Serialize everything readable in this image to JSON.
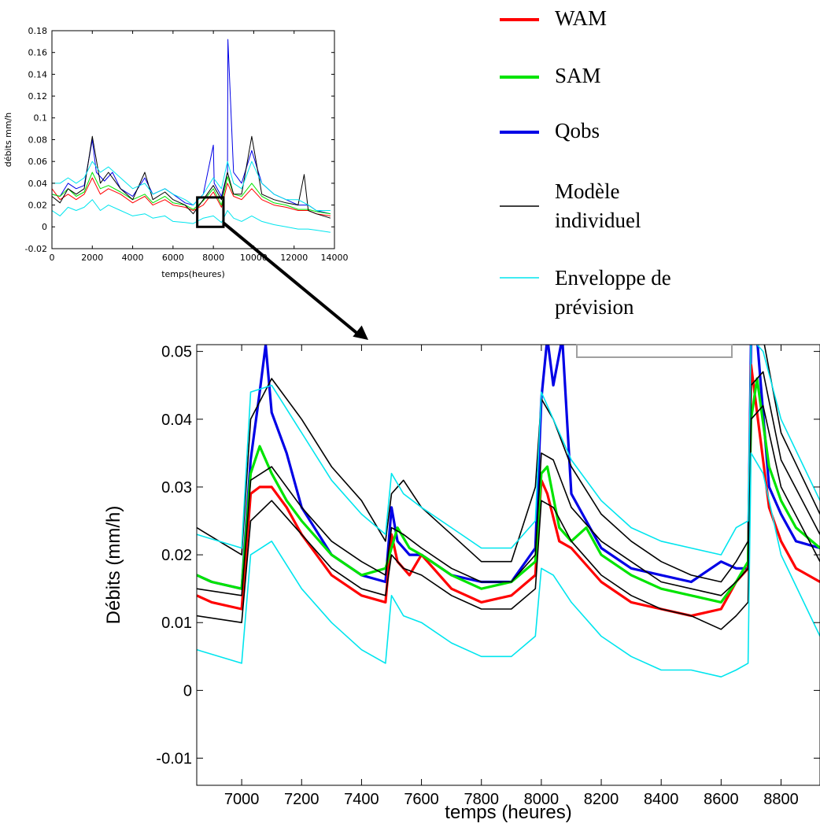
{
  "legend": [
    {
      "label": "WAM",
      "color": "#ff0000"
    },
    {
      "label": "SAM",
      "color": "#00e400"
    },
    {
      "label": "Qobs",
      "color": "#0000e6"
    },
    {
      "label": "Modèle\nindividuel",
      "color": "#000000"
    },
    {
      "label": "Enveloppe de\nprévision",
      "color": "#00e5ee"
    }
  ],
  "chart_data": [
    {
      "type": "line",
      "xlabel": "temps(heures)",
      "ylabel": "débits mm/h",
      "xlim": [
        0,
        14000
      ],
      "ylim": [
        -0.02,
        0.18
      ],
      "xticks": [
        "0",
        "2000",
        "4000",
        "6000",
        "8000",
        "10000",
        "12000",
        "14000"
      ],
      "yticks": [
        "-0.02",
        "0",
        "0.02",
        "0.04",
        "0.06",
        "0.08",
        "0.1",
        "0.12",
        "0.14",
        "0.16",
        "0.18"
      ],
      "zoom_box": {
        "x": [
          7200,
          8500
        ],
        "y": [
          0.0,
          0.027
        ]
      },
      "series": [
        {
          "color": "#0000e6",
          "x": [
            0,
            400,
            800,
            1200,
            1600,
            2000,
            2200,
            2600,
            3000,
            3400,
            4000,
            4600,
            5000,
            5600,
            6000,
            6600,
            7000,
            7500,
            8000,
            8040,
            8400,
            8700,
            8720,
            9000,
            9400,
            9900,
            10400,
            11000,
            11600,
            12200,
            12700,
            13100,
            13800
          ],
          "y": [
            0.03,
            0.028,
            0.04,
            0.035,
            0.038,
            0.08,
            0.05,
            0.042,
            0.05,
            0.035,
            0.028,
            0.045,
            0.03,
            0.035,
            0.03,
            0.022,
            0.02,
            0.03,
            0.075,
            0.04,
            0.028,
            0.05,
            0.172,
            0.05,
            0.04,
            0.07,
            0.04,
            0.03,
            0.025,
            0.02,
            0.02,
            0.015,
            0.012
          ]
        },
        {
          "color": "#ff0000",
          "x": [
            0,
            400,
            800,
            1200,
            1600,
            2000,
            2400,
            2800,
            3400,
            4000,
            4600,
            5000,
            5600,
            6000,
            6600,
            7000,
            7500,
            8000,
            8400,
            8700,
            9000,
            9400,
            9900,
            10400,
            11000,
            11600,
            12200,
            12700,
            13100,
            13800
          ],
          "y": [
            0.035,
            0.025,
            0.03,
            0.025,
            0.03,
            0.045,
            0.03,
            0.035,
            0.03,
            0.022,
            0.028,
            0.02,
            0.025,
            0.02,
            0.018,
            0.015,
            0.02,
            0.032,
            0.018,
            0.04,
            0.028,
            0.025,
            0.035,
            0.025,
            0.02,
            0.018,
            0.015,
            0.015,
            0.012,
            0.01
          ]
        },
        {
          "color": "#00e400",
          "x": [
            0,
            400,
            800,
            1200,
            1600,
            2000,
            2400,
            2800,
            3400,
            4000,
            4600,
            5000,
            5600,
            6000,
            6600,
            7000,
            7500,
            8000,
            8400,
            8700,
            9000,
            9400,
            9900,
            10400,
            11000,
            11600,
            12200,
            12700,
            13100,
            13800
          ],
          "y": [
            0.03,
            0.028,
            0.035,
            0.028,
            0.032,
            0.05,
            0.035,
            0.038,
            0.032,
            0.025,
            0.03,
            0.022,
            0.028,
            0.022,
            0.02,
            0.016,
            0.024,
            0.035,
            0.02,
            0.046,
            0.03,
            0.028,
            0.04,
            0.028,
            0.022,
            0.02,
            0.016,
            0.016,
            0.014,
            0.012
          ]
        },
        {
          "color": "#000000",
          "x": [
            0,
            400,
            800,
            1200,
            1600,
            2000,
            2400,
            2800,
            3400,
            4000,
            4600,
            5000,
            5600,
            6000,
            6600,
            7000,
            7500,
            8000,
            8400,
            8700,
            9000,
            9400,
            9900,
            10400,
            11000,
            11600,
            12200,
            12500,
            12700,
            13100,
            13800
          ],
          "y": [
            0.028,
            0.022,
            0.035,
            0.03,
            0.035,
            0.083,
            0.04,
            0.05,
            0.035,
            0.025,
            0.05,
            0.025,
            0.032,
            0.025,
            0.02,
            0.012,
            0.025,
            0.038,
            0.025,
            0.05,
            0.03,
            0.03,
            0.083,
            0.03,
            0.025,
            0.022,
            0.02,
            0.048,
            0.015,
            0.012,
            0.008
          ]
        },
        {
          "color": "#00e5ee",
          "x": [
            0,
            400,
            800,
            1200,
            1600,
            2000,
            2400,
            2800,
            3400,
            4000,
            4600,
            5000,
            5600,
            6000,
            6600,
            7000,
            7500,
            8000,
            8400,
            8700,
            9000,
            9400,
            9900,
            10400,
            11000,
            11600,
            12200,
            12700,
            13100,
            13800
          ],
          "y": [
            0.04,
            0.04,
            0.045,
            0.04,
            0.045,
            0.06,
            0.05,
            0.055,
            0.045,
            0.035,
            0.04,
            0.03,
            0.035,
            0.03,
            0.025,
            0.02,
            0.03,
            0.045,
            0.035,
            0.06,
            0.04,
            0.035,
            0.06,
            0.04,
            0.03,
            0.025,
            0.025,
            0.02,
            0.015,
            0.015
          ]
        },
        {
          "color": "#00e5ee",
          "x": [
            0,
            400,
            800,
            1200,
            1600,
            2000,
            2400,
            2800,
            3400,
            4000,
            4600,
            5000,
            5600,
            6000,
            6600,
            7000,
            7500,
            8000,
            8400,
            8700,
            9000,
            9400,
            9900,
            10400,
            11000,
            11600,
            12200,
            12700,
            13100,
            13800
          ],
          "y": [
            0.015,
            0.01,
            0.018,
            0.015,
            0.018,
            0.025,
            0.015,
            0.02,
            0.015,
            0.01,
            0.012,
            0.008,
            0.01,
            0.005,
            0.004,
            0.003,
            0.008,
            0.01,
            0.004,
            0.015,
            0.008,
            0.005,
            0.01,
            0.005,
            0.002,
            0.0,
            -0.002,
            -0.002,
            -0.003,
            -0.005
          ]
        }
      ]
    },
    {
      "type": "line",
      "xlabel": "temps (heures)",
      "ylabel": "Débits (mm/h)",
      "xlim": [
        6850,
        8930
      ],
      "ylim": [
        -0.014,
        0.051
      ],
      "xticks": [
        "7000",
        "7200",
        "7400",
        "7600",
        "7800",
        "8000",
        "8200",
        "8400",
        "8600",
        "8800"
      ],
      "yticks": [
        "-0.01",
        "0",
        "0.01",
        "0.02",
        "0.03",
        "0.04",
        "0.05"
      ],
      "series": [
        {
          "color": "#0000e6",
          "x": [
            6850,
            6900,
            7000,
            7030,
            7060,
            7080,
            7100,
            7150,
            7200,
            7300,
            7400,
            7480,
            7500,
            7520,
            7560,
            7600,
            7700,
            7800,
            7900,
            7980,
            8000,
            8020,
            8040,
            8070,
            8100,
            8200,
            8300,
            8400,
            8500,
            8600,
            8650,
            8690,
            8700,
            8720,
            8760,
            8800,
            8850,
            8930
          ],
          "y": [
            0.017,
            0.016,
            0.015,
            0.034,
            0.044,
            0.051,
            0.041,
            0.035,
            0.027,
            0.02,
            0.017,
            0.016,
            0.027,
            0.022,
            0.02,
            0.02,
            0.017,
            0.016,
            0.016,
            0.021,
            0.043,
            0.052,
            0.045,
            0.052,
            0.029,
            0.021,
            0.018,
            0.017,
            0.016,
            0.019,
            0.018,
            0.018,
            0.052,
            0.052,
            0.03,
            0.026,
            0.022,
            0.021
          ]
        },
        {
          "color": "#ff0000",
          "x": [
            6850,
            6900,
            7000,
            7030,
            7060,
            7100,
            7150,
            7200,
            7300,
            7400,
            7480,
            7500,
            7520,
            7560,
            7600,
            7700,
            7800,
            7900,
            7980,
            8000,
            8020,
            8060,
            8100,
            8200,
            8300,
            8400,
            8500,
            8600,
            8650,
            8690,
            8700,
            8720,
            8760,
            8800,
            8850,
            8930
          ],
          "y": [
            0.014,
            0.013,
            0.012,
            0.029,
            0.03,
            0.03,
            0.027,
            0.023,
            0.017,
            0.014,
            0.013,
            0.023,
            0.019,
            0.017,
            0.02,
            0.015,
            0.013,
            0.014,
            0.017,
            0.031,
            0.029,
            0.022,
            0.021,
            0.016,
            0.013,
            0.012,
            0.011,
            0.012,
            0.016,
            0.018,
            0.048,
            0.041,
            0.027,
            0.022,
            0.018,
            0.016
          ]
        },
        {
          "color": "#00e400",
          "x": [
            6850,
            6900,
            7000,
            7030,
            7060,
            7100,
            7150,
            7200,
            7300,
            7400,
            7480,
            7500,
            7520,
            7560,
            7600,
            7700,
            7800,
            7900,
            7980,
            8000,
            8020,
            8060,
            8100,
            8150,
            8200,
            8300,
            8400,
            8500,
            8600,
            8650,
            8690,
            8700,
            8720,
            8760,
            8800,
            8850,
            8930
          ],
          "y": [
            0.017,
            0.016,
            0.015,
            0.032,
            0.036,
            0.032,
            0.028,
            0.025,
            0.02,
            0.017,
            0.018,
            0.021,
            0.024,
            0.021,
            0.02,
            0.017,
            0.015,
            0.016,
            0.019,
            0.032,
            0.033,
            0.024,
            0.022,
            0.024,
            0.02,
            0.017,
            0.015,
            0.014,
            0.013,
            0.016,
            0.019,
            0.04,
            0.046,
            0.033,
            0.028,
            0.024,
            0.021
          ]
        },
        {
          "color": "#000000",
          "x": [
            6850,
            7000,
            7030,
            7100,
            7200,
            7300,
            7400,
            7480,
            7500,
            7540,
            7600,
            7700,
            7800,
            7900,
            7980,
            8000,
            8040,
            8100,
            8200,
            8300,
            8400,
            8500,
            8600,
            8650,
            8690,
            8700,
            8740,
            8800,
            8930
          ],
          "y": [
            0.024,
            0.02,
            0.04,
            0.046,
            0.04,
            0.033,
            0.028,
            0.022,
            0.029,
            0.031,
            0.027,
            0.023,
            0.019,
            0.019,
            0.03,
            0.043,
            0.04,
            0.033,
            0.026,
            0.022,
            0.019,
            0.017,
            0.016,
            0.019,
            0.022,
            0.052,
            0.052,
            0.038,
            0.026
          ]
        },
        {
          "color": "#000000",
          "x": [
            6850,
            7000,
            7030,
            7100,
            7200,
            7300,
            7400,
            7480,
            7500,
            7540,
            7600,
            7700,
            7800,
            7900,
            7980,
            8000,
            8040,
            8100,
            8200,
            8300,
            8400,
            8500,
            8600,
            8650,
            8690,
            8700,
            8740,
            8800,
            8930
          ],
          "y": [
            0.011,
            0.01,
            0.025,
            0.028,
            0.023,
            0.018,
            0.015,
            0.014,
            0.02,
            0.018,
            0.017,
            0.014,
            0.012,
            0.012,
            0.015,
            0.028,
            0.027,
            0.022,
            0.017,
            0.014,
            0.012,
            0.011,
            0.009,
            0.011,
            0.013,
            0.04,
            0.042,
            0.03,
            0.019
          ]
        },
        {
          "color": "#000000",
          "x": [
            6850,
            7000,
            7030,
            7100,
            7200,
            7300,
            7400,
            7480,
            7500,
            7540,
            7600,
            7700,
            7800,
            7900,
            7980,
            8000,
            8040,
            8100,
            8200,
            8300,
            8400,
            8500,
            8600,
            8650,
            8690,
            8700,
            8740,
            8800,
            8930
          ],
          "y": [
            0.015,
            0.014,
            0.031,
            0.033,
            0.027,
            0.022,
            0.019,
            0.017,
            0.024,
            0.023,
            0.021,
            0.018,
            0.016,
            0.016,
            0.02,
            0.035,
            0.034,
            0.027,
            0.022,
            0.019,
            0.016,
            0.015,
            0.014,
            0.016,
            0.018,
            0.045,
            0.047,
            0.034,
            0.023
          ]
        },
        {
          "color": "#00e5ee",
          "x": [
            6850,
            7000,
            7030,
            7100,
            7200,
            7300,
            7400,
            7480,
            7500,
            7540,
            7600,
            7700,
            7800,
            7900,
            7980,
            8000,
            8040,
            8100,
            8200,
            8300,
            8400,
            8500,
            8600,
            8650,
            8690,
            8700,
            8740,
            8800,
            8930
          ],
          "y": [
            0.023,
            0.021,
            0.044,
            0.045,
            0.038,
            0.031,
            0.026,
            0.023,
            0.032,
            0.029,
            0.027,
            0.024,
            0.021,
            0.021,
            0.025,
            0.044,
            0.04,
            0.034,
            0.028,
            0.024,
            0.022,
            0.021,
            0.02,
            0.024,
            0.025,
            0.052,
            0.05,
            0.04,
            0.028
          ]
        },
        {
          "color": "#00e5ee",
          "x": [
            6850,
            7000,
            7030,
            7100,
            7200,
            7300,
            7400,
            7480,
            7500,
            7540,
            7600,
            7700,
            7800,
            7900,
            7980,
            8000,
            8040,
            8100,
            8200,
            8300,
            8400,
            8500,
            8600,
            8650,
            8690,
            8700,
            8740,
            8800,
            8930
          ],
          "y": [
            0.006,
            0.004,
            0.02,
            0.022,
            0.015,
            0.01,
            0.006,
            0.004,
            0.014,
            0.011,
            0.01,
            0.007,
            0.005,
            0.005,
            0.008,
            0.018,
            0.017,
            0.013,
            0.008,
            0.005,
            0.003,
            0.003,
            0.002,
            0.003,
            0.004,
            0.035,
            0.032,
            0.02,
            0.008
          ]
        }
      ]
    }
  ]
}
